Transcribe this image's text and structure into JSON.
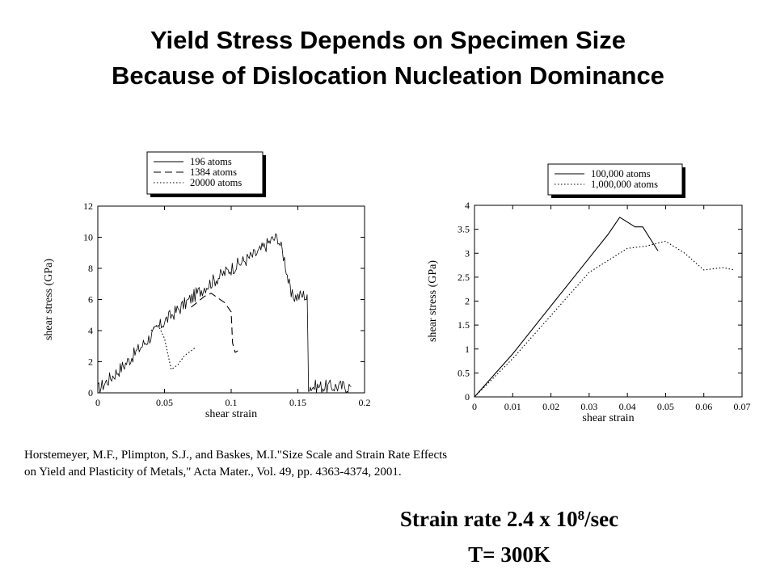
{
  "title_line1": "Yield Stress Depends on Specimen Size",
  "title_line2": "Because of Dislocation Nucleation Dominance",
  "citation_line1": "Horstemeyer, M.F., Plimpton, S.J., and Baskes, M.I.\"Size Scale and Strain Rate Effects",
  "citation_line2": "on Yield and Plasticity of Metals,\" Acta Mater., Vol. 49, pp. 4363-4374, 2001.",
  "strain_rate_prefix": "Strain rate 2.4 x 10",
  "strain_rate_exponent": "8",
  "strain_rate_suffix": "/sec",
  "temperature": "T= 300K",
  "chart_data": [
    {
      "type": "line",
      "xlabel": "shear strain",
      "ylabel": "shear stress (GPa)",
      "xlim": [
        0,
        0.2
      ],
      "ylim": [
        0,
        12
      ],
      "xticks": [
        "0",
        "0.05",
        "0.1",
        "0.15",
        "0.2"
      ],
      "yticks": [
        "0",
        "2",
        "4",
        "6",
        "8",
        "10",
        "12"
      ],
      "legend_position": "above plot, center",
      "series": [
        {
          "name": "196 atoms",
          "style": "solid",
          "noisy": true,
          "x": [
            0,
            0.02,
            0.05,
            0.08,
            0.1,
            0.12,
            0.13,
            0.135,
            0.14,
            0.142,
            0.145,
            0.15,
            0.155,
            0.157,
            0.158,
            0.16,
            0.19
          ],
          "y": [
            0.2,
            1.8,
            4.6,
            6.8,
            8.0,
            9.0,
            9.8,
            10.0,
            8.6,
            7.6,
            6.2,
            6.2,
            6.3,
            6.0,
            0.5,
            0.4,
            0.4
          ]
        },
        {
          "name": "1384 atoms",
          "style": "dashed",
          "x": [
            0.07,
            0.08,
            0.085,
            0.095,
            0.1,
            0.101,
            0.103,
            0.105
          ],
          "y": [
            5.5,
            6.2,
            6.4,
            5.8,
            5.2,
            3.2,
            2.6,
            2.7
          ]
        },
        {
          "name": "20000 atoms",
          "style": "dotted",
          "x": [
            0.04,
            0.045,
            0.05,
            0.055,
            0.06,
            0.065,
            0.07,
            0.073
          ],
          "y": [
            4.0,
            4.4,
            3.5,
            1.5,
            1.8,
            2.4,
            2.7,
            2.9
          ]
        }
      ]
    },
    {
      "type": "line",
      "xlabel": "shear strain",
      "ylabel": "shear stress (GPa)",
      "xlim": [
        0,
        0.07
      ],
      "ylim": [
        0,
        4
      ],
      "xticks": [
        "0",
        "0.01",
        "0.02",
        "0.03",
        "0.04",
        "0.05",
        "0.06",
        "0.07"
      ],
      "yticks": [
        "0",
        "0.5",
        "1",
        "1.5",
        "2",
        "2.5",
        "3",
        "3.5",
        "4"
      ],
      "legend_position": "above plot, center",
      "series": [
        {
          "name": "100,000 atoms",
          "style": "solid",
          "x": [
            0,
            0.01,
            0.02,
            0.03,
            0.035,
            0.038,
            0.04,
            0.042,
            0.044,
            0.046,
            0.048
          ],
          "y": [
            0,
            0.9,
            1.9,
            2.9,
            3.4,
            3.75,
            3.65,
            3.55,
            3.55,
            3.3,
            3.05
          ],
          "noisy": false
        },
        {
          "name": "1,000,000 atoms",
          "style": "dotted",
          "x": [
            0,
            0.01,
            0.02,
            0.03,
            0.04,
            0.045,
            0.05,
            0.055,
            0.06,
            0.065,
            0.068
          ],
          "y": [
            0,
            0.8,
            1.7,
            2.6,
            3.1,
            3.15,
            3.25,
            3.0,
            2.65,
            2.7,
            2.65
          ]
        }
      ]
    }
  ]
}
